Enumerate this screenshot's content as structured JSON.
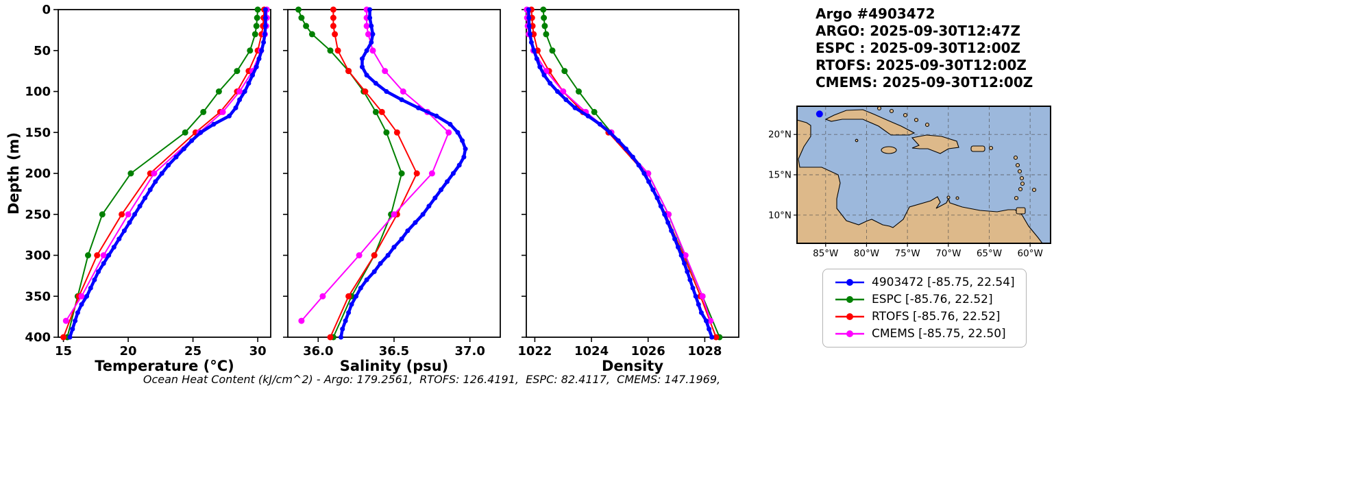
{
  "header": {
    "title": "Argo #4903472",
    "argo_time": "ARGO: 2025-09-30T12:47Z",
    "espc_time": "ESPC : 2025-09-30T12:00Z",
    "rtofs_time": "RTOFS: 2025-09-30T12:00Z",
    "cmems_time": "CMEMS: 2025-09-30T12:00Z"
  },
  "footer": {
    "ohc": "Ocean Heat Content (kJ/cm^2) - Argo: 179.2561,  RTOFS: 126.4191,  ESPC: 82.4117,  CMEMS: 147.1969,"
  },
  "legend": {
    "items": [
      {
        "label": "4903472 [-85.75, 22.54]",
        "color": "#0000ff"
      },
      {
        "label": "ESPC [-85.76, 22.52]",
        "color": "#008000"
      },
      {
        "label": "RTOFS [-85.76, 22.52]",
        "color": "#ff0000"
      },
      {
        "label": "CMEMS [-85.75, 22.50]",
        "color": "#ff00ff"
      }
    ]
  },
  "map": {
    "ocean_color": "#9cb8dc",
    "land_color": "#ddb98a",
    "lon_range": [
      -88.5,
      -57.5
    ],
    "lat_range": [
      6.5,
      23.5
    ],
    "lon_ticks": [
      {
        "v": -85,
        "label": "85°W"
      },
      {
        "v": -80,
        "label": "80°W"
      },
      {
        "v": -75,
        "label": "75°W"
      },
      {
        "v": -70,
        "label": "70°W"
      },
      {
        "v": -65,
        "label": "65°W"
      },
      {
        "v": -60,
        "label": "60°W"
      }
    ],
    "lat_ticks": [
      {
        "v": 20,
        "label": "20°N"
      },
      {
        "v": 15,
        "label": "15°N"
      },
      {
        "v": 10,
        "label": "10°N"
      }
    ],
    "marker": {
      "lon": -85.75,
      "lat": 22.54,
      "color": "#0000ff"
    }
  },
  "chart_data": [
    {
      "id": "temperature",
      "type": "line",
      "xlabel": "Temperature (°C)",
      "ylabel": "Depth (m)",
      "xlim": [
        14.6,
        31.0
      ],
      "ylim": [
        0,
        400
      ],
      "y_inverted": true,
      "grid": false,
      "show_ytick_labels": true,
      "xticks": [
        {
          "v": 15,
          "label": "15"
        },
        {
          "v": 20,
          "label": "20"
        },
        {
          "v": 25,
          "label": "25"
        },
        {
          "v": 30,
          "label": "30"
        }
      ],
      "yticks": [
        0,
        50,
        100,
        150,
        200,
        250,
        300,
        350,
        400
      ],
      "series": [
        {
          "name": "ESPC",
          "color": "#008000",
          "line_width": 2,
          "marker_r": 4.5,
          "depths": [
            0,
            10,
            20,
            30,
            50,
            75,
            100,
            125,
            150,
            200,
            250,
            300,
            350,
            400
          ],
          "values": [
            30.0,
            29.95,
            29.9,
            29.8,
            29.4,
            28.4,
            27.0,
            25.8,
            24.4,
            20.2,
            18.0,
            16.9,
            16.1,
            15.3
          ]
        },
        {
          "name": "RTOFS",
          "color": "#ff0000",
          "line_width": 2,
          "marker_r": 4.5,
          "depths": [
            0,
            10,
            20,
            30,
            50,
            75,
            100,
            125,
            150,
            200,
            250,
            300,
            350,
            400
          ],
          "values": [
            30.5,
            30.45,
            30.4,
            30.3,
            30.0,
            29.3,
            28.4,
            27.1,
            25.2,
            21.7,
            19.5,
            17.6,
            16.2,
            15.0
          ]
        },
        {
          "name": "CMEMS",
          "color": "#ff00ff",
          "line_width": 2,
          "marker_r": 4.5,
          "depths": [
            0,
            10,
            20,
            30,
            50,
            75,
            100,
            125,
            150,
            200,
            250,
            300,
            350,
            380
          ],
          "values": [
            30.7,
            30.7,
            30.65,
            30.55,
            30.25,
            29.6,
            28.6,
            27.3,
            25.5,
            22.0,
            20.0,
            18.1,
            16.4,
            15.2
          ]
        },
        {
          "name": "4903472",
          "color": "#0000ff",
          "line_width": 4.5,
          "marker_r": 3.5,
          "depths": [
            0,
            10,
            20,
            30,
            40,
            50,
            60,
            70,
            80,
            90,
            100,
            110,
            120,
            130,
            140,
            150,
            160,
            170,
            180,
            190,
            200,
            210,
            220,
            230,
            240,
            250,
            260,
            270,
            280,
            290,
            300,
            310,
            320,
            330,
            340,
            350,
            360,
            370,
            380,
            390,
            400
          ],
          "values": [
            30.6,
            30.6,
            30.6,
            30.55,
            30.45,
            30.3,
            30.1,
            29.9,
            29.6,
            29.3,
            29.0,
            28.6,
            28.3,
            27.8,
            26.6,
            25.6,
            24.9,
            24.3,
            23.7,
            23.1,
            22.6,
            22.1,
            21.7,
            21.3,
            20.9,
            20.5,
            20.1,
            19.7,
            19.3,
            18.9,
            18.5,
            18.1,
            17.7,
            17.4,
            17.1,
            16.8,
            16.4,
            16.1,
            15.9,
            15.7,
            15.5
          ]
        }
      ]
    },
    {
      "id": "salinity",
      "type": "line",
      "xlabel": "Salinity (psu)",
      "ylabel": "",
      "xlim": [
        35.8,
        37.2
      ],
      "ylim": [
        0,
        400
      ],
      "y_inverted": true,
      "grid": false,
      "show_ytick_labels": false,
      "xticks": [
        {
          "v": 36.0,
          "label": "36.0"
        },
        {
          "v": 36.5,
          "label": "36.5"
        },
        {
          "v": 37.0,
          "label": "37.0"
        }
      ],
      "yticks": [
        0,
        50,
        100,
        150,
        200,
        250,
        300,
        350,
        400
      ],
      "series": [
        {
          "name": "ESPC",
          "color": "#008000",
          "line_width": 2,
          "marker_r": 4.5,
          "depths": [
            0,
            10,
            20,
            30,
            50,
            75,
            100,
            125,
            150,
            200,
            250,
            300,
            350,
            400
          ],
          "values": [
            35.87,
            35.89,
            35.92,
            35.96,
            36.08,
            36.2,
            36.3,
            36.38,
            36.45,
            36.55,
            36.48,
            36.37,
            36.22,
            36.1
          ]
        },
        {
          "name": "RTOFS",
          "color": "#ff0000",
          "line_width": 2,
          "marker_r": 4.5,
          "depths": [
            0,
            10,
            20,
            30,
            50,
            75,
            100,
            125,
            150,
            200,
            250,
            300,
            350,
            400
          ],
          "values": [
            36.1,
            36.1,
            36.1,
            36.11,
            36.13,
            36.2,
            36.31,
            36.42,
            36.52,
            36.65,
            36.52,
            36.37,
            36.2,
            36.08
          ]
        },
        {
          "name": "CMEMS",
          "color": "#ff00ff",
          "line_width": 2,
          "marker_r": 4.5,
          "depths": [
            0,
            10,
            20,
            30,
            50,
            75,
            100,
            125,
            150,
            200,
            250,
            300,
            350,
            380
          ],
          "values": [
            36.32,
            36.32,
            36.32,
            36.33,
            36.36,
            36.44,
            36.56,
            36.72,
            36.86,
            36.75,
            36.5,
            36.27,
            36.03,
            35.89
          ]
        },
        {
          "name": "4903472",
          "color": "#0000ff",
          "line_width": 4.5,
          "marker_r": 3.5,
          "depths": [
            0,
            10,
            20,
            30,
            40,
            50,
            60,
            70,
            80,
            90,
            100,
            110,
            120,
            130,
            140,
            150,
            160,
            170,
            180,
            190,
            200,
            210,
            220,
            230,
            240,
            250,
            260,
            270,
            280,
            290,
            300,
            310,
            320,
            330,
            340,
            350,
            360,
            370,
            380,
            390,
            400
          ],
          "values": [
            36.34,
            36.34,
            36.35,
            36.36,
            36.35,
            36.32,
            36.29,
            36.29,
            36.32,
            36.38,
            36.45,
            36.55,
            36.66,
            36.78,
            36.87,
            36.92,
            36.95,
            36.97,
            36.96,
            36.93,
            36.89,
            36.85,
            36.81,
            36.77,
            36.73,
            36.69,
            36.64,
            36.59,
            36.55,
            36.5,
            36.46,
            36.41,
            36.37,
            36.32,
            36.28,
            36.25,
            36.22,
            36.2,
            36.18,
            36.16,
            36.15
          ]
        }
      ]
    },
    {
      "id": "density",
      "type": "line",
      "xlabel": "Density",
      "ylabel": "",
      "xlim": [
        1021.7,
        1029.2
      ],
      "ylim": [
        0,
        400
      ],
      "y_inverted": true,
      "grid": false,
      "show_ytick_labels": false,
      "xticks": [
        {
          "v": 1022,
          "label": "1022"
        },
        {
          "v": 1024,
          "label": "1024"
        },
        {
          "v": 1026,
          "label": "1026"
        },
        {
          "v": 1028,
          "label": "1028"
        }
      ],
      "yticks": [
        0,
        50,
        100,
        150,
        200,
        250,
        300,
        350,
        400
      ],
      "series": [
        {
          "name": "ESPC",
          "color": "#008000",
          "line_width": 2,
          "marker_r": 4.5,
          "depths": [
            0,
            10,
            20,
            30,
            50,
            75,
            100,
            125,
            150,
            200,
            250,
            300,
            350,
            400
          ],
          "values": [
            1022.3,
            1022.32,
            1022.35,
            1022.4,
            1022.62,
            1023.05,
            1023.55,
            1024.1,
            1024.7,
            1026.0,
            1026.72,
            1027.3,
            1027.92,
            1028.52
          ]
        },
        {
          "name": "RTOFS",
          "color": "#ff0000",
          "line_width": 2,
          "marker_r": 4.5,
          "depths": [
            0,
            10,
            20,
            30,
            50,
            75,
            100,
            125,
            150,
            200,
            250,
            300,
            350,
            400
          ],
          "values": [
            1021.88,
            1021.9,
            1021.92,
            1021.96,
            1022.1,
            1022.5,
            1023.0,
            1023.7,
            1024.6,
            1025.9,
            1026.62,
            1027.25,
            1027.85,
            1028.4
          ]
        },
        {
          "name": "CMEMS",
          "color": "#ff00ff",
          "line_width": 2,
          "marker_r": 4.5,
          "depths": [
            0,
            10,
            20,
            30,
            50,
            75,
            100,
            125,
            150,
            200,
            250,
            300,
            350,
            380
          ],
          "values": [
            1021.72,
            1021.73,
            1021.75,
            1021.79,
            1021.95,
            1022.4,
            1023.0,
            1023.8,
            1024.7,
            1026.0,
            1026.72,
            1027.32,
            1027.92,
            1028.2
          ]
        },
        {
          "name": "4903472",
          "color": "#0000ff",
          "line_width": 4.5,
          "marker_r": 3.5,
          "depths": [
            0,
            10,
            20,
            30,
            40,
            50,
            60,
            70,
            80,
            90,
            100,
            110,
            120,
            130,
            140,
            150,
            160,
            170,
            180,
            190,
            200,
            210,
            220,
            230,
            240,
            250,
            260,
            270,
            280,
            290,
            300,
            310,
            320,
            330,
            340,
            350,
            360,
            370,
            380,
            390,
            400
          ],
          "values": [
            1021.78,
            1021.79,
            1021.8,
            1021.83,
            1021.88,
            1021.97,
            1022.07,
            1022.18,
            1022.33,
            1022.54,
            1022.8,
            1023.1,
            1023.42,
            1023.88,
            1024.3,
            1024.65,
            1024.95,
            1025.22,
            1025.46,
            1025.67,
            1025.86,
            1026.02,
            1026.17,
            1026.32,
            1026.45,
            1026.58,
            1026.7,
            1026.82,
            1026.94,
            1027.06,
            1027.17,
            1027.28,
            1027.38,
            1027.48,
            1027.58,
            1027.68,
            1027.78,
            1027.88,
            1028.05,
            1028.15,
            1028.25
          ]
        }
      ]
    }
  ]
}
